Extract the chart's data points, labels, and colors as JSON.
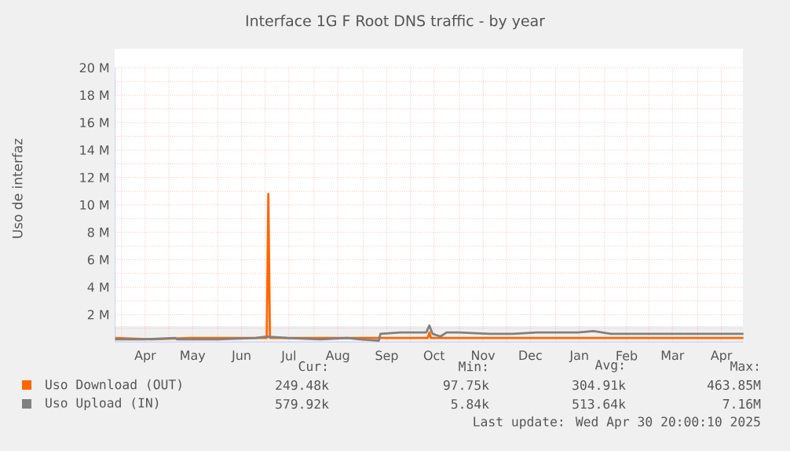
{
  "chart_data": {
    "type": "line",
    "title": "Interface 1G F Root DNS traffic - by year",
    "ylabel": "Uso de interfaz",
    "xlim": [
      "2024-03-28",
      "2025-04-30"
    ],
    "ylim": [
      0,
      20000000
    ],
    "xticks": [
      {
        "value": "2024-04-01",
        "label": null
      },
      {
        "value": "2024-04-16",
        "label": "Apr"
      },
      {
        "value": "2024-05-01",
        "label": null
      },
      {
        "value": "2024-05-16",
        "label": "May"
      },
      {
        "value": "2024-06-01",
        "label": null
      },
      {
        "value": "2024-06-16",
        "label": "Jun"
      },
      {
        "value": "2024-07-01",
        "label": null
      },
      {
        "value": "2024-07-16",
        "label": "Jul"
      },
      {
        "value": "2024-08-01",
        "label": null
      },
      {
        "value": "2024-08-16",
        "label": "Aug"
      },
      {
        "value": "2024-09-01",
        "label": null
      },
      {
        "value": "2024-09-16",
        "label": "Sep"
      },
      {
        "value": "2024-10-01",
        "label": null
      },
      {
        "value": "2024-10-16",
        "label": "Oct"
      },
      {
        "value": "2024-11-01",
        "label": null
      },
      {
        "value": "2024-11-16",
        "label": "Nov"
      },
      {
        "value": "2024-12-01",
        "label": null
      },
      {
        "value": "2024-12-16",
        "label": "Dec"
      },
      {
        "value": "2025-01-01",
        "label": null
      },
      {
        "value": "2025-01-16",
        "label": "Jan"
      },
      {
        "value": "2025-02-01",
        "label": null
      },
      {
        "value": "2025-02-15",
        "label": "Feb"
      },
      {
        "value": "2025-03-01",
        "label": null
      },
      {
        "value": "2025-03-16",
        "label": "Mar"
      },
      {
        "value": "2025-04-01",
        "label": null
      },
      {
        "value": "2025-04-16",
        "label": "Apr"
      }
    ],
    "yticks": [
      {
        "value": 1000000,
        "label": null
      },
      {
        "value": 2000000,
        "label": "2 M"
      },
      {
        "value": 3000000,
        "label": null
      },
      {
        "value": 4000000,
        "label": "4 M"
      },
      {
        "value": 5000000,
        "label": null
      },
      {
        "value": 6000000,
        "label": "6 M"
      },
      {
        "value": 7000000,
        "label": null
      },
      {
        "value": 8000000,
        "label": "8 M"
      },
      {
        "value": 9000000,
        "label": null
      },
      {
        "value": 10000000,
        "label": "10 M"
      },
      {
        "value": 11000000,
        "label": null
      },
      {
        "value": 12000000,
        "label": "12 M"
      },
      {
        "value": 13000000,
        "label": null
      },
      {
        "value": 14000000,
        "label": "14 M"
      },
      {
        "value": 15000000,
        "label": null
      },
      {
        "value": 16000000,
        "label": "16 M"
      },
      {
        "value": 17000000,
        "label": null
      },
      {
        "value": 18000000,
        "label": "18 M"
      },
      {
        "value": 19000000,
        "label": null
      },
      {
        "value": 20000000,
        "label": "20 M"
      }
    ],
    "grid": true,
    "legend": "bottom",
    "line_style": "solid",
    "marker": "none",
    "series": [
      {
        "name": "Uso Download (OUT)",
        "color": "#ff6600",
        "x": [
          "2024-03-28",
          "2024-04-20",
          "2024-05-15",
          "2024-06-10",
          "2024-07-02",
          "2024-07-03",
          "2024-07-04",
          "2024-07-15",
          "2024-08-20",
          "2024-09-20",
          "2024-10-12",
          "2024-10-13",
          "2024-10-14",
          "2024-11-15",
          "2024-12-20",
          "2025-01-20",
          "2025-02-20",
          "2025-03-20",
          "2025-04-30"
        ],
        "values": [
          300000,
          200000,
          300000,
          300000,
          300000,
          10800000,
          300000,
          300000,
          300000,
          300000,
          300000,
          700000,
          300000,
          300000,
          300000,
          300000,
          300000,
          300000,
          300000
        ]
      },
      {
        "name": "Uso Upload (IN)",
        "color": "#808080",
        "x": [
          "2024-03-28",
          "2024-04-15",
          "2024-05-05",
          "2024-05-06",
          "2024-06-01",
          "2024-06-25",
          "2024-07-02",
          "2024-07-15",
          "2024-08-05",
          "2024-08-22",
          "2024-08-30",
          "2024-09-11",
          "2024-09-12",
          "2024-09-25",
          "2024-10-11",
          "2024-10-13",
          "2024-10-15",
          "2024-10-20",
          "2024-10-24",
          "2024-11-01",
          "2024-11-20",
          "2024-12-05",
          "2024-12-20",
          "2025-01-15",
          "2025-01-25",
          "2025-02-05",
          "2025-02-20",
          "2025-03-10",
          "2025-04-01",
          "2025-04-30"
        ],
        "values": [
          200000,
          200000,
          300000,
          200000,
          200000,
          300000,
          400000,
          300000,
          200000,
          300000,
          200000,
          100000,
          600000,
          700000,
          700000,
          1200000,
          600000,
          400000,
          700000,
          700000,
          600000,
          600000,
          700000,
          700000,
          800000,
          600000,
          600000,
          600000,
          600000,
          600000
        ]
      }
    ],
    "annotations": [
      "Cur:",
      "Min:",
      "Avg:",
      "Max:",
      "249.48k",
      "97.75k",
      "304.91k",
      "463.85M",
      "579.92k",
      "5.84k",
      "513.64k",
      "7.16M",
      "Last update: Wed Apr 30 20:00:10 2025"
    ]
  }
}
